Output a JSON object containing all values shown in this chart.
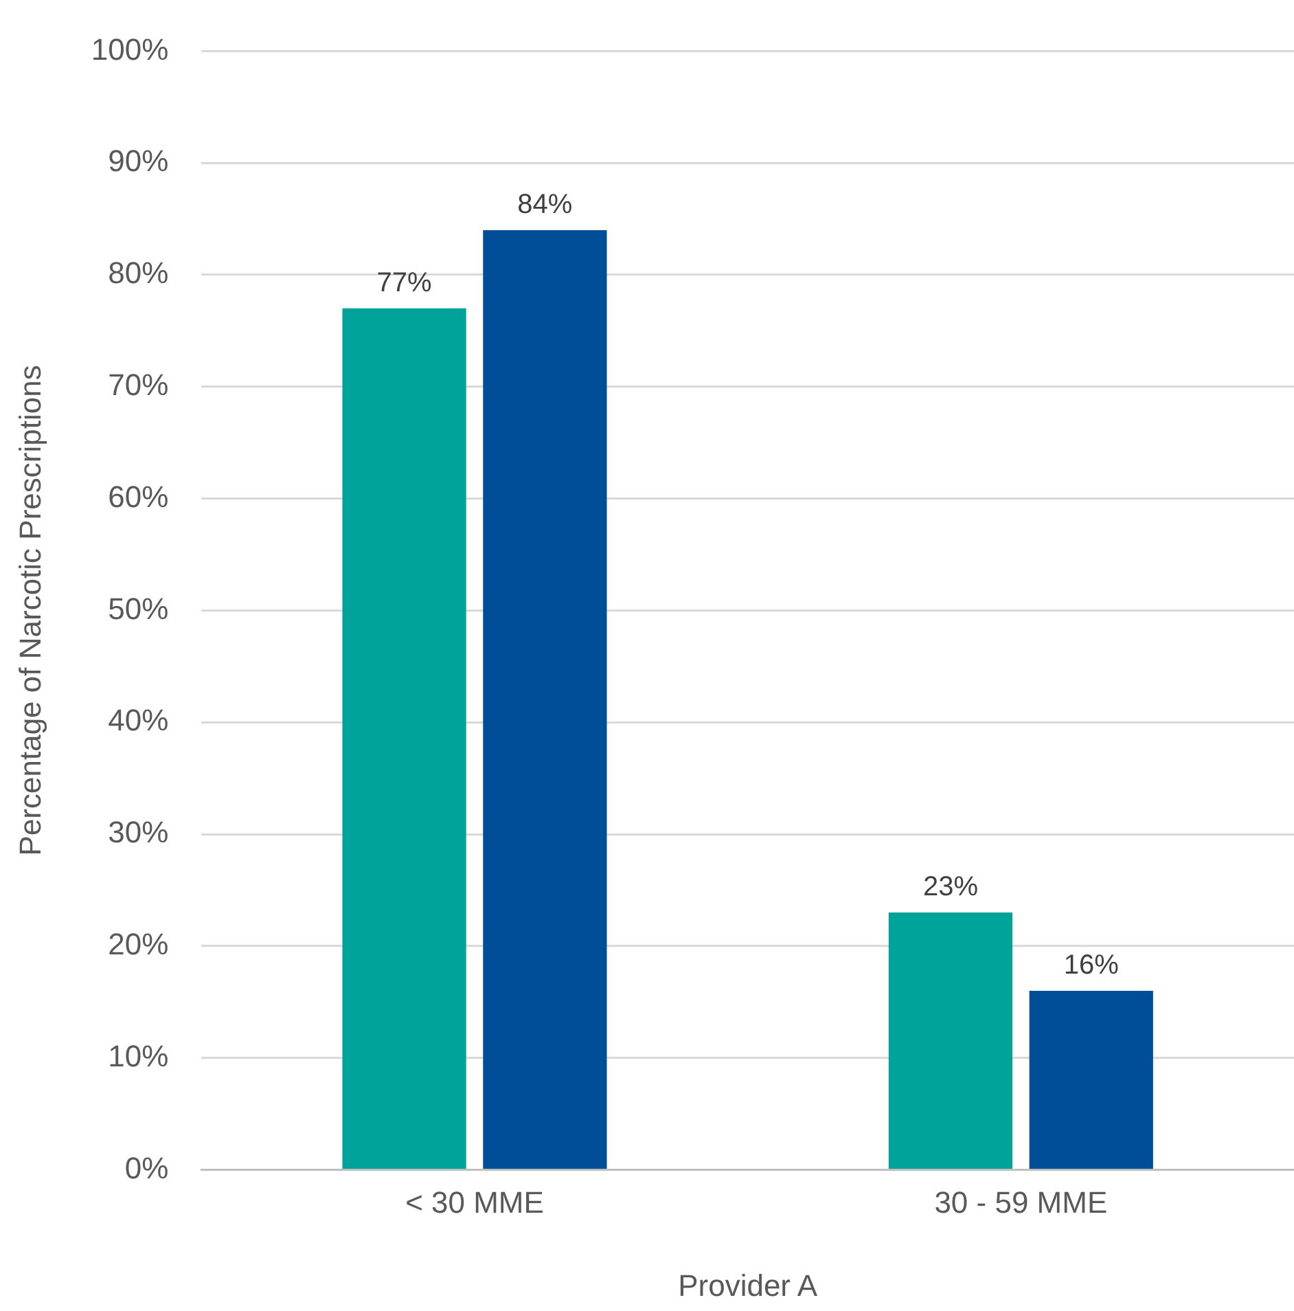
{
  "chart_data": {
    "type": "bar",
    "ylabel": "Percentage of Narcotic Prescriptions",
    "xlabel": "Provider A",
    "categories": [
      "< 30 MME",
      "30 - 59 MME"
    ],
    "series": [
      {
        "color": "#00a39a",
        "values": [
          77,
          23
        ],
        "value_labels": [
          "77%",
          "23%"
        ]
      },
      {
        "color": "#004e98",
        "values": [
          84,
          16
        ],
        "value_labels": [
          "84%",
          "16%"
        ]
      }
    ],
    "ylim": [
      0,
      100
    ],
    "yticks": [
      {
        "value": 0,
        "label": "0%"
      },
      {
        "value": 10,
        "label": "10%"
      },
      {
        "value": 20,
        "label": "20%"
      },
      {
        "value": 30,
        "label": "30%"
      },
      {
        "value": 40,
        "label": "40%"
      },
      {
        "value": 50,
        "label": "50%"
      },
      {
        "value": 60,
        "label": "60%"
      },
      {
        "value": 70,
        "label": "70%"
      },
      {
        "value": 80,
        "label": "80%"
      },
      {
        "value": 90,
        "label": "90%"
      },
      {
        "value": 100,
        "label": "100%"
      }
    ],
    "grid": "y",
    "legend": false
  }
}
